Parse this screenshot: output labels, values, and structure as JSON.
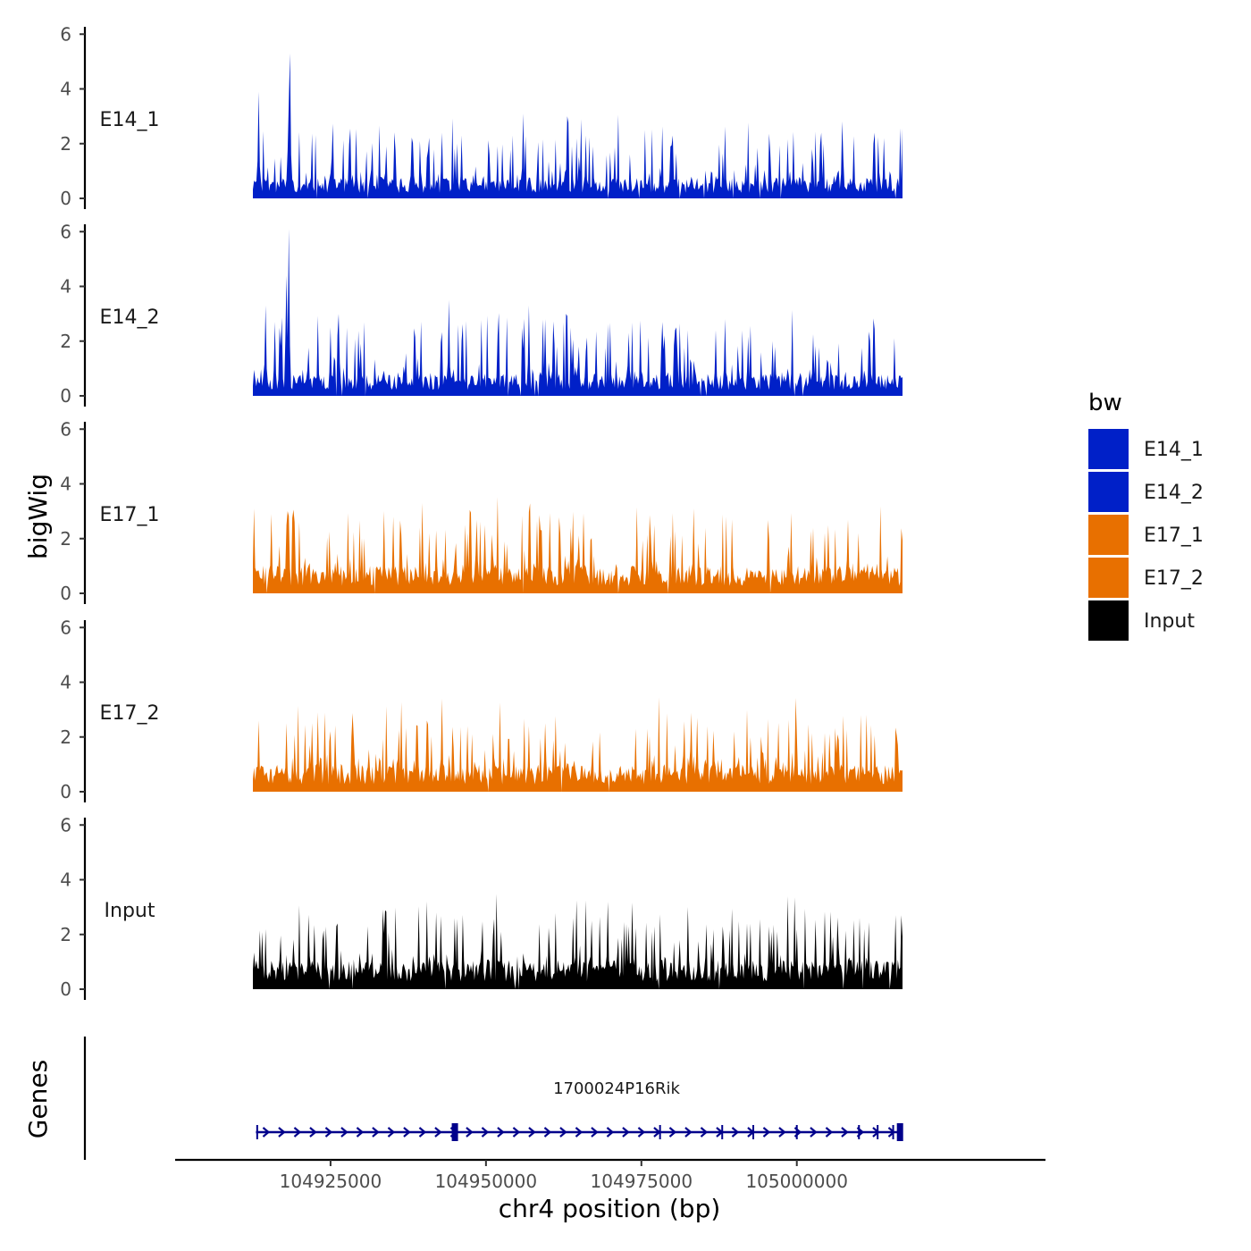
{
  "chart_data": {
    "type": "area",
    "y_axis_title": "bigWig",
    "genes_axis_title": "Genes",
    "x_axis_title": "chr4 position (bp)",
    "xlim": [
      104900000,
      105040000
    ],
    "data_xrange": [
      104912500,
      105017000
    ],
    "ylim": [
      0,
      6.4
    ],
    "y_ticks": [
      "0",
      "2",
      "4",
      "6"
    ],
    "x_ticks": [
      {
        "value": 104925000,
        "label": "104925000"
      },
      {
        "value": 104950000,
        "label": "104950000"
      },
      {
        "value": 104975000,
        "label": "104975000"
      },
      {
        "value": 105000000,
        "label": "105000000"
      }
    ],
    "legend": {
      "title": "bw",
      "position": "right",
      "entries": [
        {
          "label": "E14_1",
          "color": "#0020C8"
        },
        {
          "label": "E14_2",
          "color": "#0020C8"
        },
        {
          "label": "E17_1",
          "color": "#E87000"
        },
        {
          "label": "E17_2",
          "color": "#E87000"
        },
        {
          "label": "Input",
          "color": "#000000"
        }
      ]
    },
    "series": [
      {
        "name": "E14_1",
        "color": "#0020C8",
        "seed": 11,
        "base": 0.55,
        "noise": 0.9,
        "spikes": [
          [
            104913500,
            3.9
          ],
          [
            104918500,
            5.3
          ],
          [
            104918300,
            3.5
          ],
          [
            104934000,
            1.9
          ],
          [
            104943000,
            2.4
          ],
          [
            104946000,
            2.3
          ],
          [
            104956000,
            3.1
          ],
          [
            104963000,
            3.0
          ],
          [
            104966000,
            2.3
          ],
          [
            104980000,
            2.3
          ],
          [
            105004000,
            2.4
          ],
          [
            105012500,
            2.4
          ],
          [
            105014000,
            2.2
          ]
        ]
      },
      {
        "name": "E14_2",
        "color": "#0020C8",
        "seed": 23,
        "base": 0.6,
        "noise": 0.95,
        "spikes": [
          [
            104914500,
            3.3
          ],
          [
            104918300,
            6.1
          ],
          [
            104918000,
            4.4
          ],
          [
            104916000,
            2.7
          ],
          [
            104925000,
            2.5
          ],
          [
            104944000,
            3.5
          ],
          [
            104957000,
            3.3
          ],
          [
            104959500,
            2.8
          ],
          [
            104973000,
            2.3
          ],
          [
            104980500,
            2.4
          ],
          [
            104987000,
            2.4
          ],
          [
            104988500,
            2.8
          ]
        ]
      },
      {
        "name": "E17_1",
        "color": "#E87000",
        "seed": 37,
        "base": 0.75,
        "noise": 1.0,
        "spikes": [
          [
            104912600,
            3.1
          ],
          [
            104915500,
            2.9
          ],
          [
            104918000,
            2.5
          ],
          [
            104935000,
            2.8
          ],
          [
            104942000,
            2.3
          ],
          [
            104947000,
            2.2
          ],
          [
            104953000,
            1.9
          ],
          [
            104962000,
            2.2
          ],
          [
            104977000,
            2.5
          ],
          [
            104983500,
            3.1
          ],
          [
            105004500,
            2.2
          ],
          [
            105010000,
            2.2
          ]
        ]
      },
      {
        "name": "E17_2",
        "color": "#E87000",
        "seed": 53,
        "base": 0.75,
        "noise": 1.0,
        "spikes": [
          [
            104913500,
            2.6
          ],
          [
            104918000,
            2.5
          ],
          [
            104923000,
            2.9
          ],
          [
            104940500,
            2.6
          ],
          [
            104943000,
            3.4
          ],
          [
            104947000,
            2.4
          ],
          [
            104957000,
            2.4
          ],
          [
            104976000,
            2.3
          ],
          [
            104984000,
            2.7
          ],
          [
            104990000,
            2.2
          ],
          [
            105000000,
            2.0
          ],
          [
            105006500,
            2.1
          ]
        ]
      },
      {
        "name": "Input",
        "color": "#000000",
        "seed": 71,
        "base": 0.8,
        "noise": 0.95,
        "spikes": [
          [
            104926000,
            2.3
          ],
          [
            104931000,
            2.3
          ],
          [
            104942000,
            2.8
          ],
          [
            104945000,
            2.6
          ],
          [
            104964000,
            2.6
          ],
          [
            104967000,
            2.5
          ],
          [
            104973000,
            2.3
          ],
          [
            104988000,
            2.3
          ],
          [
            104992000,
            2.4
          ],
          [
            104996000,
            2.1
          ],
          [
            105000000,
            2.2
          ]
        ]
      }
    ],
    "gene": {
      "name": "1700024P16Rik",
      "strand": "+",
      "color": "#00008B",
      "start": 104913000,
      "end": 105017000,
      "exons": [
        104913200,
        104945000,
        104978000,
        104988000,
        104993000,
        105000000,
        105010000,
        105013000,
        105015500,
        105016600
      ]
    }
  }
}
